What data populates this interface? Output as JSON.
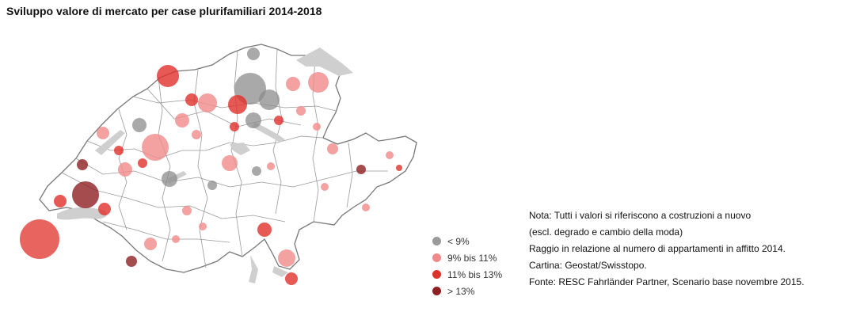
{
  "title": "Sviluppo valore di mercato per case plurifamiliari 2014-2018",
  "legend": [
    {
      "label": "< 9%",
      "color": "#9a9a9a"
    },
    {
      "label": "9% bis 11%",
      "color": "#f08a8a"
    },
    {
      "label": "11% bis 13%",
      "color": "#e0302a"
    },
    {
      "label": "> 13%",
      "color": "#8e1f22"
    }
  ],
  "notes": [
    "Nota: Tutti i valori si riferiscono a costruzioni a nuovo",
    "(escl. degrado e cambio della moda)",
    "Raggio in relazione al numero di appartamenti in affitto 2014.",
    "Cartina: Geostat/Swisstopo.",
    "Fonte: RESC Fahrländer Partner, Scenario base novembre 2015."
  ],
  "colors": {
    "land": "#ffffff",
    "border": "#777777",
    "lake": "#cfcfcf"
  }
}
